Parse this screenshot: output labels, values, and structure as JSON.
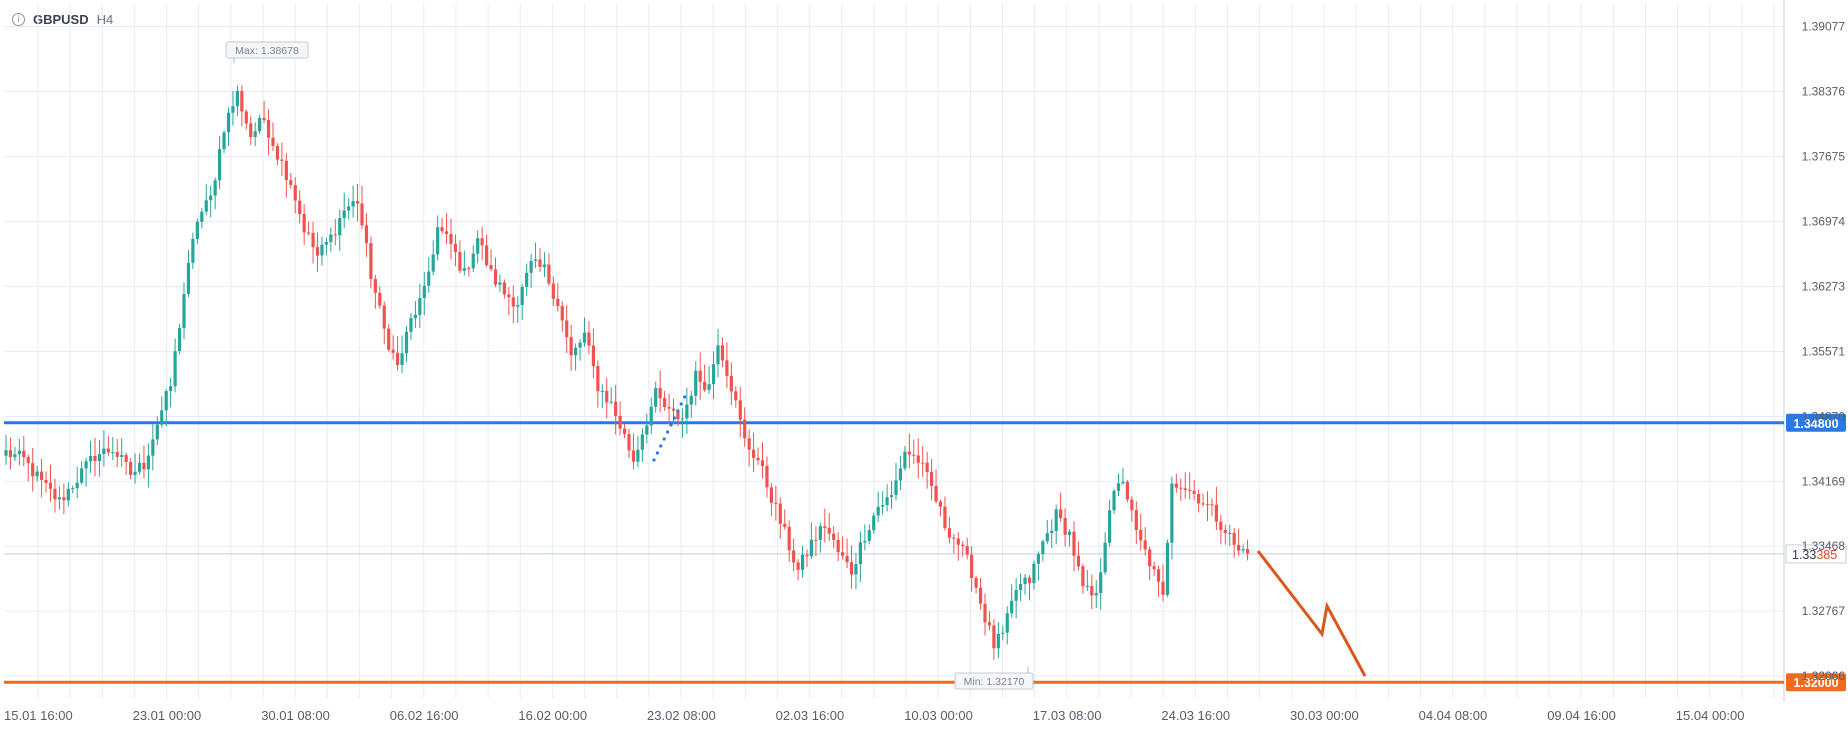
{
  "header": {
    "symbol": "GBPUSD",
    "timeframe": "H4"
  },
  "colors": {
    "bull": "#26a69a",
    "bear": "#ef5350",
    "grid": "#e6ecf5",
    "axis_text": "#555d68",
    "support": "#f26b1d",
    "resistance": "#2a78e4",
    "arrow": "#d9581c",
    "dots": "#2a78e4"
  },
  "chart_data": {
    "type": "candlestick",
    "ylim": [
      1.3183,
      1.3932
    ],
    "y_ticks": [
      "1.39077",
      "1.38376",
      "1.37675",
      "1.36974",
      "1.36273",
      "1.35571",
      "1.34870",
      "1.34169",
      "1.33468",
      "1.32767",
      "1.32066"
    ],
    "x_tick_labels": [
      "15.01 16:00",
      "23.01 00:00",
      "30.01 08:00",
      "06.02 16:00",
      "16.02 00:00",
      "23.02 08:00",
      "02.03 16:00",
      "10.03 00:00",
      "17.03 08:00",
      "24.03 16:00",
      "30.03 00:00",
      "04.04 08:00",
      "09.04 16:00",
      "15.04 00:00"
    ],
    "levels": [
      {
        "name": "resistance",
        "value": 1.348,
        "label": "1.34800"
      },
      {
        "name": "support",
        "value": 1.32,
        "label": "1.32000"
      }
    ],
    "current_price_label_prefix": "1.33",
    "current_price_label_suffix": "385",
    "current_price": 1.33385,
    "max_label": "Max: 1.38678",
    "min_label": "Min: 1.32170",
    "max_value": 1.38678,
    "min_value": 1.3217,
    "close_waypoints": [
      [
        0,
        1.3448
      ],
      [
        4,
        1.344
      ],
      [
        8,
        1.3415
      ],
      [
        12,
        1.3395
      ],
      [
        16,
        1.342
      ],
      [
        20,
        1.3445
      ],
      [
        24,
        1.3452
      ],
      [
        28,
        1.3425
      ],
      [
        31,
        1.3435
      ],
      [
        34,
        1.348
      ],
      [
        37,
        1.352
      ],
      [
        40,
        1.362
      ],
      [
        43,
        1.37
      ],
      [
        46,
        1.3722
      ],
      [
        49,
        1.38
      ],
      [
        52,
        1.3835
      ],
      [
        55,
        1.379
      ],
      [
        58,
        1.3808
      ],
      [
        61,
        1.377
      ],
      [
        64,
        1.374
      ],
      [
        67,
        1.369
      ],
      [
        70,
        1.366
      ],
      [
        73,
        1.368
      ],
      [
        76,
        1.371
      ],
      [
        79,
        1.372
      ],
      [
        82,
        1.364
      ],
      [
        85,
        1.358
      ],
      [
        88,
        1.354
      ],
      [
        91,
        1.359
      ],
      [
        94,
        1.362
      ],
      [
        97,
        1.369
      ],
      [
        100,
        1.3672
      ],
      [
        103,
        1.364
      ],
      [
        106,
        1.368
      ],
      [
        109,
        1.364
      ],
      [
        112,
        1.362
      ],
      [
        115,
        1.361
      ],
      [
        118,
        1.365
      ],
      [
        121,
        1.3645
      ],
      [
        124,
        1.361
      ],
      [
        127,
        1.355
      ],
      [
        130,
        1.3575
      ],
      [
        133,
        1.352
      ],
      [
        136,
        1.35
      ],
      [
        139,
        1.3465
      ],
      [
        141,
        1.344
      ],
      [
        143,
        1.347
      ],
      [
        146,
        1.351
      ],
      [
        149,
        1.349
      ],
      [
        152,
        1.3485
      ],
      [
        155,
        1.353
      ],
      [
        158,
        1.352
      ],
      [
        160,
        1.357
      ],
      [
        163,
        1.352
      ],
      [
        166,
        1.346
      ],
      [
        169,
        1.344
      ],
      [
        172,
        1.34
      ],
      [
        175,
        1.336
      ],
      [
        178,
        1.332
      ],
      [
        181,
        1.335
      ],
      [
        184,
        1.337
      ],
      [
        187,
        1.334
      ],
      [
        190,
        1.332
      ],
      [
        193,
        1.336
      ],
      [
        196,
        1.339
      ],
      [
        199,
        1.34
      ],
      [
        202,
        1.345
      ],
      [
        205,
        1.344
      ],
      [
        208,
        1.341
      ],
      [
        211,
        1.337
      ],
      [
        214,
        1.335
      ],
      [
        217,
        1.332
      ],
      [
        220,
        1.327
      ],
      [
        222,
        1.324
      ],
      [
        224,
        1.325
      ],
      [
        227,
        1.33
      ],
      [
        230,
        1.331
      ],
      [
        233,
        1.335
      ],
      [
        236,
        1.338
      ],
      [
        239,
        1.336
      ],
      [
        242,
        1.33
      ],
      [
        245,
        1.329
      ],
      [
        248,
        1.339
      ],
      [
        251,
        1.342
      ],
      [
        254,
        1.336
      ],
      [
        257,
        1.333
      ],
      [
        260,
        1.329
      ],
      [
        262,
        1.342
      ],
      [
        265,
        1.341
      ],
      [
        268,
        1.34
      ],
      [
        271,
        1.3385
      ],
      [
        274,
        1.3365
      ],
      [
        277,
        1.334
      ],
      [
        279,
        1.3345
      ]
    ],
    "projection_arrow": [
      [
        1258,
        551
      ],
      [
        1322,
        634
      ],
      [
        1327,
        606
      ],
      [
        1365,
        676
      ]
    ]
  }
}
